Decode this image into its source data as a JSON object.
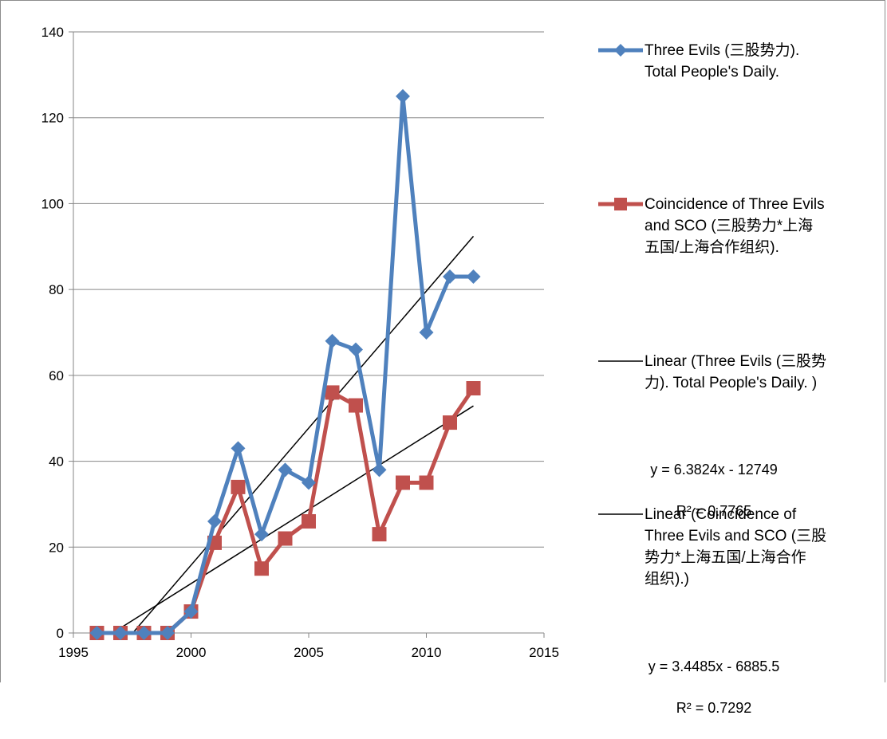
{
  "chart_data": {
    "type": "line",
    "xlim": [
      1995,
      2015
    ],
    "ylim": [
      0,
      140
    ],
    "x_ticks": [
      "1995",
      "2000",
      "2005",
      "2010",
      "2015"
    ],
    "y_ticks": [
      "0",
      "20",
      "40",
      "60",
      "80",
      "100",
      "120",
      "140"
    ],
    "grid": "horizontal",
    "legend_position": "right",
    "series": [
      {
        "name": "Three Evils (三股势力). Total People's Daily.",
        "color": "#4f81bd",
        "marker": "diamond",
        "x": [
          1996,
          1997,
          1998,
          1999,
          2000,
          2001,
          2002,
          2003,
          2004,
          2005,
          2006,
          2007,
          2008,
          2009,
          2010,
          2011,
          2012
        ],
        "y": [
          0,
          0,
          0,
          0,
          5,
          26,
          43,
          23,
          38,
          35,
          68,
          66,
          38,
          125,
          70,
          83,
          83
        ]
      },
      {
        "name": "Coincidence of Three Evils and SCO (三股势力*上海五国/上海合作组织).",
        "color": "#c0504d",
        "marker": "square",
        "x": [
          1996,
          1997,
          1998,
          1999,
          2000,
          2001,
          2002,
          2003,
          2004,
          2005,
          2006,
          2007,
          2008,
          2009,
          2010,
          2011,
          2012
        ],
        "y": [
          0,
          0,
          0,
          0,
          5,
          21,
          34,
          15,
          22,
          26,
          56,
          53,
          23,
          35,
          35,
          49,
          57
        ]
      }
    ],
    "trendlines": [
      {
        "name": "Linear (Three Evils (三股势力). Total People's Daily. )",
        "color": "#000000",
        "slope": 6.3824,
        "intercept": -12749,
        "equation": "y = 6.3824x - 12749",
        "r2": "R² = 0.7765"
      },
      {
        "name": "Linear (Coincidence of Three Evils and SCO (三股势力*上海五国/上海合作组织).)",
        "color": "#000000",
        "slope": 3.4485,
        "intercept": -6885.5,
        "equation": "y = 3.4485x - 6885.5",
        "r2": "R² = 0.7292"
      }
    ]
  },
  "legend": {
    "item1": "Three Evils (三股势力).\nTotal People's Daily.",
    "item2": "Coincidence of Three Evils\nand SCO (三股势力*上海\n五国/上海合作组织).",
    "item3": "Linear (Three Evils (三股势\n力). Total People's Daily. )",
    "item4": "Linear (Coincidence of\nThree Evils and SCO (三股\n势力*上海五国/上海合作\n组织).)"
  }
}
